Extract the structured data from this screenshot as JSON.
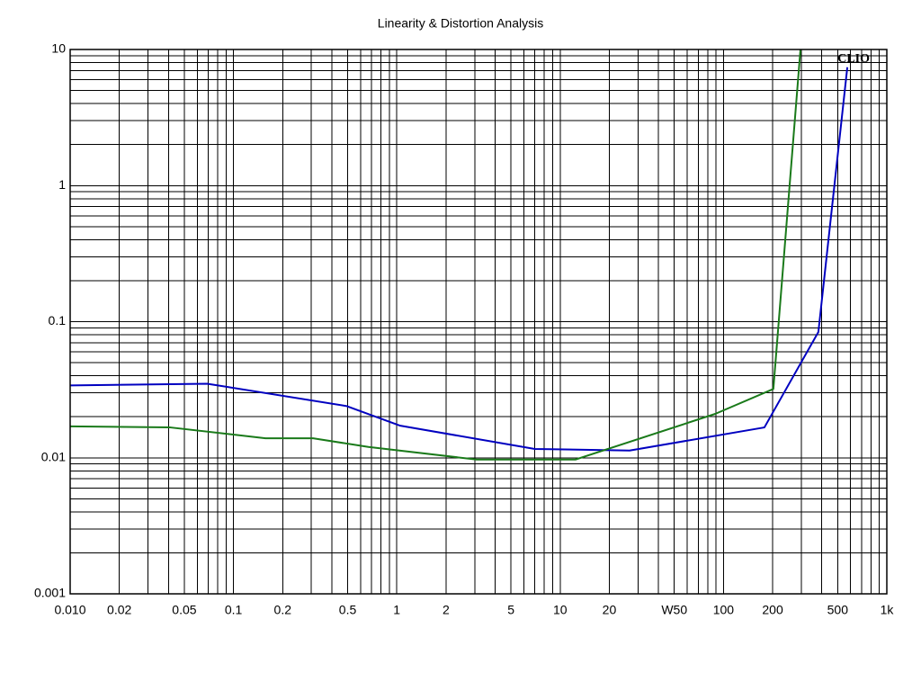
{
  "chart_data": {
    "type": "line",
    "title": "Linearity & Distortion Analysis",
    "annotation": "CLIO",
    "xscale": "log",
    "yscale": "log",
    "grid": true,
    "minor_grid": true,
    "xlim": [
      0.01,
      1000
    ],
    "ylim": [
      0.001,
      10
    ],
    "xticks": [
      {
        "value": 0.01,
        "label": "0.010"
      },
      0.02,
      0.05,
      0.1,
      0.2,
      0.5,
      1,
      2,
      5,
      10,
      20,
      {
        "value": 50,
        "label": "W50"
      },
      100,
      200,
      500,
      {
        "value": 1000,
        "label": "1k"
      }
    ],
    "yticks": [
      0.001,
      0.01,
      0.1,
      1,
      10
    ],
    "series": [
      {
        "color": "#0000c0",
        "x": [
          0.01,
          0.069,
          0.49,
          1.05,
          7.0,
          26.6,
          178,
          381,
          573
        ],
        "values": [
          0.034,
          0.035,
          0.024,
          0.0172,
          0.0116,
          0.0113,
          0.0167,
          0.084,
          7.4
        ]
      },
      {
        "color": "#1a7a1a",
        "x": [
          0.01,
          0.041,
          0.157,
          0.307,
          0.67,
          3.08,
          12.4,
          89,
          202,
          296
        ],
        "values": [
          0.017,
          0.0167,
          0.0139,
          0.0139,
          0.012,
          0.0097,
          0.0097,
          0.021,
          0.032,
          10
        ]
      }
    ]
  }
}
